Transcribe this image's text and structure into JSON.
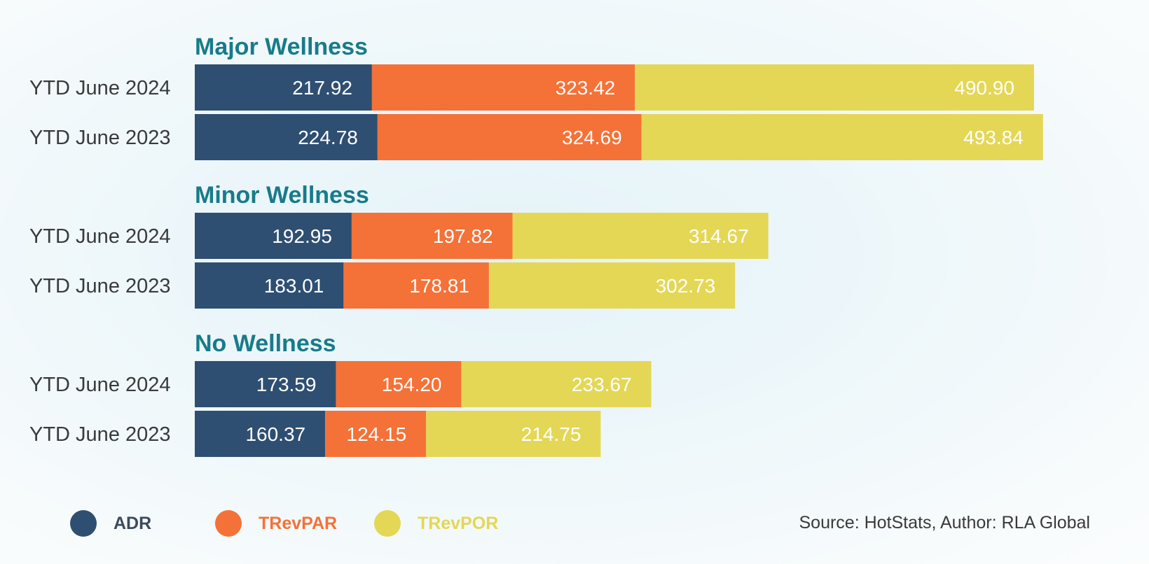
{
  "chart_data": {
    "type": "bar",
    "orientation": "horizontal",
    "stacked": true,
    "groups": [
      {
        "title": "Major Wellness",
        "rows": [
          {
            "label": "YTD June 2024",
            "values": [
              217.92,
              323.42,
              490.9
            ],
            "display": [
              "217.92",
              "323.42",
              "490.90"
            ]
          },
          {
            "label": "YTD June 2023",
            "values": [
              224.78,
              324.69,
              493.84
            ],
            "display": [
              "224.78",
              "324.69",
              "493.84"
            ]
          }
        ]
      },
      {
        "title": "Minor Wellness",
        "rows": [
          {
            "label": "YTD June 2024",
            "values": [
              192.95,
              197.82,
              314.67
            ],
            "display": [
              "192.95",
              "197.82",
              "314.67"
            ]
          },
          {
            "label": "YTD June 2023",
            "values": [
              183.01,
              178.81,
              302.73
            ],
            "display": [
              "183.01",
              "178.81",
              "302.73"
            ]
          }
        ]
      },
      {
        "title": "No Wellness",
        "rows": [
          {
            "label": "YTD June 2024",
            "values": [
              173.59,
              154.2,
              233.67
            ],
            "display": [
              "173.59",
              "154.20",
              "233.67"
            ]
          },
          {
            "label": "YTD June 2023",
            "values": [
              160.37,
              124.15,
              214.75
            ],
            "display": [
              "160.37",
              "124.15",
              "214.75"
            ]
          }
        ]
      }
    ],
    "series": [
      {
        "name": "ADR",
        "color": "#2f4f72"
      },
      {
        "name": "TRevPAR",
        "color": "#f47138"
      },
      {
        "name": "TRevPOR",
        "color": "#e4d755"
      }
    ],
    "legend_position": "bottom-left",
    "xlim": [
      0,
      1050
    ],
    "grid": false,
    "source": "Source: HotStats, Author: RLA Global"
  },
  "colors": {
    "group_title": "#177b89",
    "row_label": "#3a3a3a",
    "value_label": "#ffffff"
  }
}
